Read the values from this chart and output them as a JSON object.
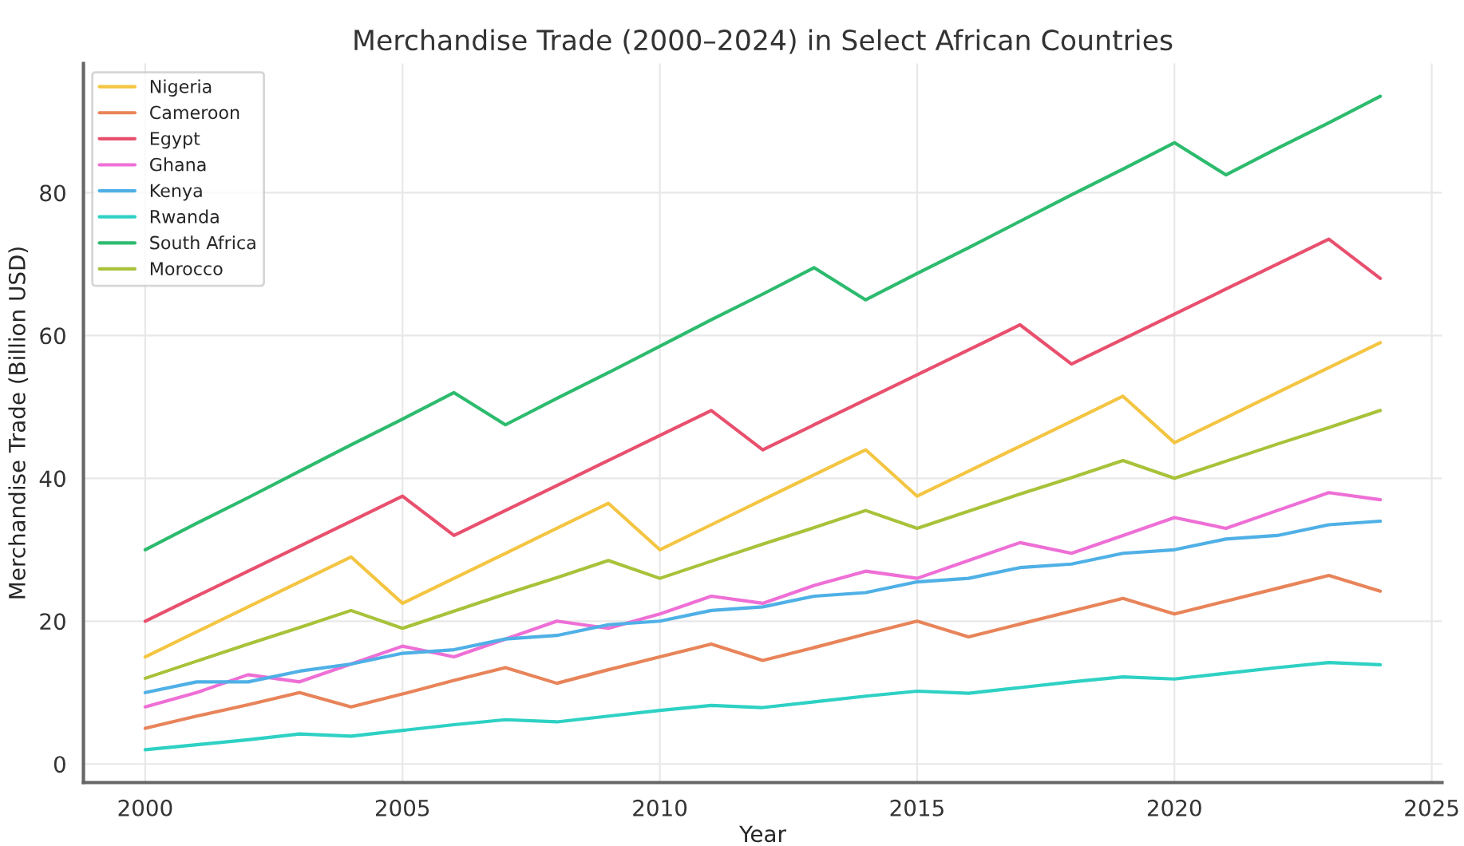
{
  "chart_data": {
    "type": "line",
    "title": "Merchandise Trade (2000–2024) in Select African Countries",
    "xlabel": "Year",
    "ylabel": "Merchandise Trade (Billion USD)",
    "x": [
      2000,
      2001,
      2002,
      2003,
      2004,
      2005,
      2006,
      2007,
      2008,
      2009,
      2010,
      2011,
      2012,
      2013,
      2014,
      2015,
      2016,
      2017,
      2018,
      2019,
      2020,
      2021,
      2022,
      2023,
      2024
    ],
    "series": [
      {
        "name": "Nigeria",
        "color": "#f4c542",
        "values": [
          15,
          18.5,
          22,
          25.5,
          29,
          22.5,
          26,
          29.5,
          33,
          36.5,
          30,
          33.5,
          37,
          40.5,
          44,
          37.5,
          41,
          44.5,
          48,
          51.5,
          45,
          48.5,
          52,
          55.5,
          59
        ]
      },
      {
        "name": "Cameroon",
        "color": "#e8845a",
        "values": [
          5,
          6.7,
          8.3,
          10,
          8,
          9.8,
          11.7,
          13.5,
          11.3,
          13.2,
          15,
          16.8,
          14.5,
          16.3,
          18.2,
          20,
          17.8,
          19.6,
          21.4,
          23.2,
          21,
          22.8,
          24.6,
          26.4,
          24.2
        ]
      },
      {
        "name": "Egypt",
        "color": "#e8506e",
        "values": [
          20,
          23.5,
          27,
          30.5,
          34,
          37.5,
          32,
          35.5,
          39,
          42.5,
          46,
          49.5,
          44,
          47.5,
          51,
          54.5,
          58,
          61.5,
          56,
          59.5,
          63,
          66.5,
          70,
          73.5,
          68
        ]
      },
      {
        "name": "Ghana",
        "color": "#ee6fd6",
        "values": [
          8,
          10,
          12.5,
          11.5,
          14,
          16.5,
          15,
          17.5,
          20,
          19,
          21,
          23.5,
          22.5,
          25,
          27,
          26,
          28.5,
          31,
          29.5,
          32,
          34.5,
          33,
          35.5,
          38,
          37
        ]
      },
      {
        "name": "Kenya",
        "color": "#4fb0e6",
        "values": [
          10,
          11.5,
          11.5,
          13,
          14,
          15.5,
          16,
          17.5,
          18,
          19.5,
          20,
          21.5,
          22,
          23.5,
          24,
          25.5,
          26,
          27.5,
          28,
          29.5,
          30,
          31.5,
          32,
          33.5,
          34
        ]
      },
      {
        "name": "Rwanda",
        "color": "#2ed1c4",
        "values": [
          2,
          2.7,
          3.4,
          4.2,
          3.9,
          4.7,
          5.5,
          6.2,
          5.9,
          6.7,
          7.5,
          8.2,
          7.9,
          8.7,
          9.5,
          10.2,
          9.9,
          10.7,
          11.5,
          12.2,
          11.9,
          12.7,
          13.5,
          14.2,
          13.9
        ]
      },
      {
        "name": "South Africa",
        "color": "#2dbb6e",
        "values": [
          30,
          33.7,
          37.3,
          41,
          44.7,
          48.3,
          52,
          47.5,
          51.2,
          54.8,
          58.5,
          62.2,
          65.8,
          69.5,
          65,
          68.7,
          72.3,
          76,
          79.7,
          83.3,
          87,
          82.5,
          86.2,
          89.8,
          93.5
        ]
      },
      {
        "name": "Morocco",
        "color": "#a8c23a",
        "values": [
          12,
          14.4,
          16.8,
          19.1,
          21.5,
          19,
          21.4,
          23.8,
          26.1,
          28.5,
          26,
          28.4,
          30.8,
          33.1,
          35.5,
          33,
          35.4,
          37.8,
          40.1,
          42.5,
          40,
          42.4,
          44.8,
          47.1,
          49.5
        ]
      }
    ],
    "xlim": [
      1998.8,
      2025.2
    ],
    "ylim": [
      -2.6,
      98.1
    ],
    "xticks": [
      2000,
      2005,
      2010,
      2015,
      2020,
      2025
    ],
    "yticks": [
      0,
      20,
      40,
      60,
      80
    ],
    "grid": true,
    "legend": "top left",
    "line_style": "solid",
    "marker": "none"
  }
}
